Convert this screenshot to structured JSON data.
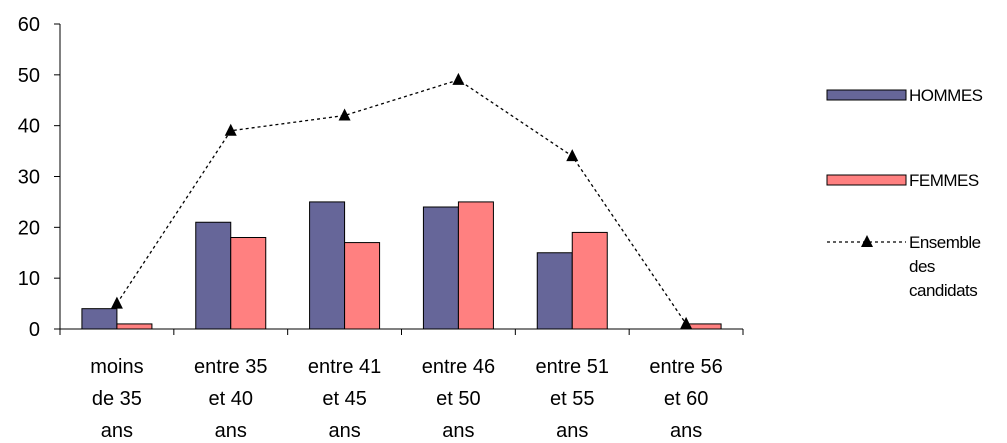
{
  "chart_data": {
    "type": "bar",
    "categories": [
      [
        "moins",
        "de 35",
        "ans"
      ],
      [
        "entre 35",
        "et 40",
        "ans"
      ],
      [
        "entre 41",
        "et 45",
        "ans"
      ],
      [
        "entre 46",
        "et 50",
        "ans"
      ],
      [
        "entre 51",
        "et 55",
        "ans"
      ],
      [
        "entre 56",
        "et 60",
        "ans"
      ]
    ],
    "series": [
      {
        "name": "HOMMES",
        "kind": "bar",
        "color": "#666699",
        "values": [
          4,
          21,
          25,
          24,
          15,
          0
        ]
      },
      {
        "name": "FEMMES",
        "kind": "bar",
        "color": "#FF8080",
        "values": [
          1,
          18,
          17,
          25,
          19,
          1
        ]
      },
      {
        "name": [
          "Ensemble",
          "des",
          "candidats"
        ],
        "kind": "line",
        "color": "#000000",
        "marker": "triangle",
        "dash": "dotted",
        "values": [
          5,
          39,
          42,
          49,
          34,
          1
        ]
      }
    ],
    "yticks": [
      "0",
      "10",
      "20",
      "30",
      "40",
      "50",
      "60"
    ],
    "ylim": [
      0,
      60
    ],
    "grid": false,
    "legend_position": "right"
  }
}
